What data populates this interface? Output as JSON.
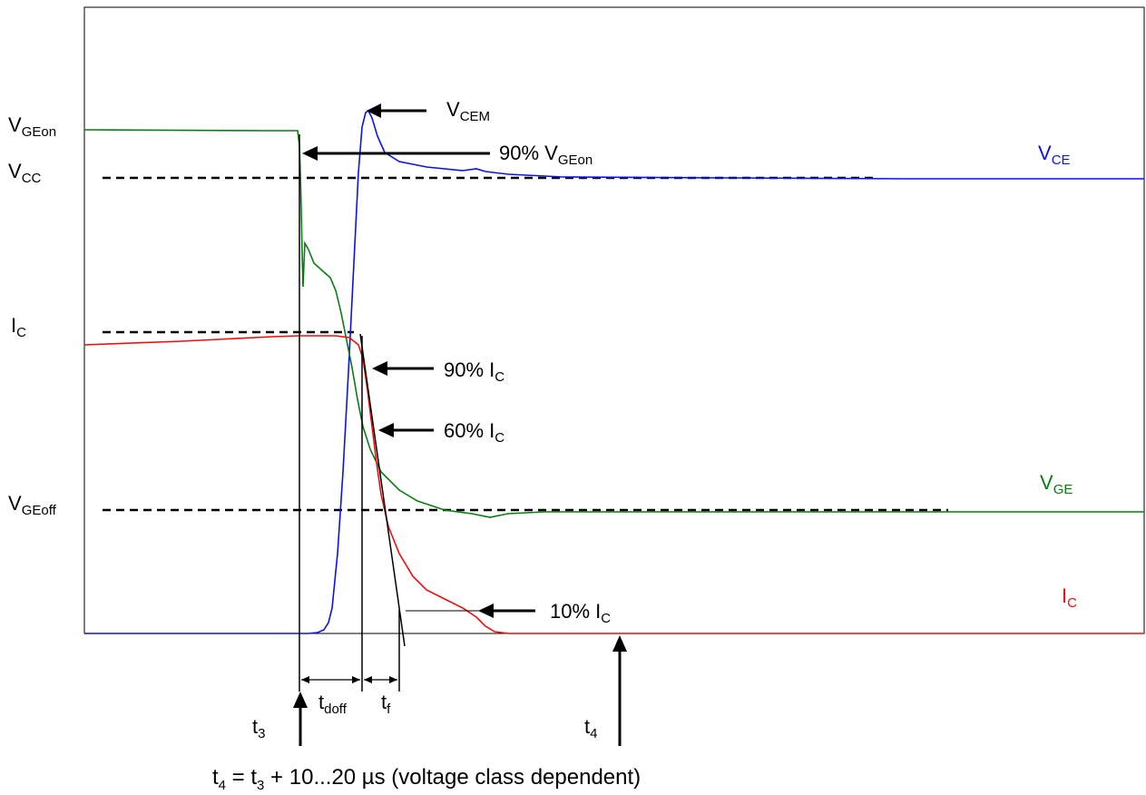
{
  "diagram": {
    "colors": {
      "vce": "#0a14e6",
      "vge": "#0a7d12",
      "ic": "#ee0e0e",
      "line": "#000000"
    },
    "level_labels": {
      "vgeon": {
        "main": "V",
        "sub": "GEon"
      },
      "vcc": {
        "main": "V",
        "sub": "CC"
      },
      "ic": {
        "main": "I",
        "sub": "C"
      },
      "vgeoff": {
        "main": "V",
        "sub": "GEoff"
      }
    },
    "annotations": {
      "vcem": {
        "main": "V",
        "sub": "CEM"
      },
      "vgeon90": {
        "main": "90% V",
        "sub": "GEon"
      },
      "ic90": {
        "main": "90% I",
        "sub": "C"
      },
      "ic60": {
        "main": "60% I",
        "sub": "C"
      },
      "ic10": {
        "main": "10% I",
        "sub": "C"
      }
    },
    "trace_labels": {
      "vce": {
        "main": "V",
        "sub": "CE"
      },
      "vge": {
        "main": "V",
        "sub": "GE"
      },
      "ic": {
        "main": "I",
        "sub": "C"
      }
    },
    "time_labels": {
      "t3": {
        "main": "t",
        "sub": "3"
      },
      "tdoff": {
        "main": "t",
        "sub": "doff"
      },
      "tf": {
        "main": "t",
        "sub": "f"
      },
      "t4": {
        "main": "t",
        "sub": "4"
      }
    },
    "formula": {
      "p1": "t",
      "s1": "4",
      "p2": " = t",
      "s2": "3",
      "p3": " + 10...20 µs (voltage class dependent)"
    }
  }
}
